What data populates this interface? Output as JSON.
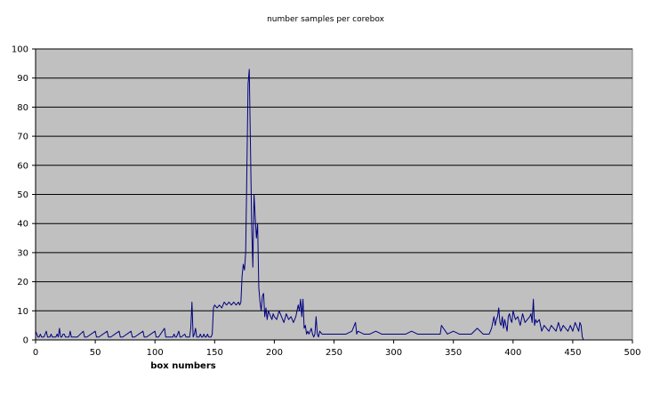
{
  "chart_data": {
    "type": "line",
    "title": "number samples per corebox",
    "xlabel": "box numbers",
    "ylabel": "",
    "xlim": [
      0,
      500
    ],
    "ylim": [
      0,
      100
    ],
    "x_ticks": [
      0,
      50,
      100,
      150,
      200,
      250,
      300,
      350,
      400,
      450,
      500
    ],
    "y_ticks": [
      0,
      10,
      20,
      30,
      40,
      50,
      60,
      70,
      80,
      90,
      100
    ],
    "grid": "horizontal",
    "legend": "none",
    "colors": {
      "plot_bg": "#c0c0c0",
      "line": "#000080",
      "grid": "#000000"
    },
    "series": [
      {
        "x": [
          0,
          1,
          2,
          3,
          4,
          5,
          6,
          7,
          8,
          9,
          10,
          11,
          12,
          13,
          14,
          15,
          16,
          17,
          18,
          19,
          20,
          21,
          22,
          23,
          24,
          25,
          26,
          27,
          28,
          29,
          30,
          31,
          32,
          33,
          34,
          35,
          40,
          41,
          42,
          43,
          50,
          51,
          52,
          53,
          60,
          61,
          62,
          63,
          70,
          71,
          72,
          73,
          80,
          81,
          82,
          83,
          90,
          91,
          92,
          93,
          100,
          101,
          102,
          103,
          108,
          109,
          110,
          111,
          115,
          116,
          117,
          118,
          120,
          121,
          122,
          125,
          126,
          127,
          128,
          129,
          130,
          131,
          132,
          133,
          134,
          135,
          136,
          137,
          138,
          139,
          140,
          141,
          142,
          143,
          144,
          145,
          146,
          147,
          148,
          149,
          150,
          152,
          154,
          156,
          158,
          160,
          162,
          164,
          166,
          168,
          170,
          171,
          172,
          173,
          174,
          175,
          176,
          177,
          178,
          179,
          180,
          181,
          182,
          183,
          184,
          185,
          186,
          187,
          188,
          189,
          190,
          191,
          192,
          193,
          194,
          195,
          196,
          197,
          198,
          199,
          200,
          202,
          204,
          206,
          208,
          210,
          212,
          214,
          216,
          218,
          220,
          221,
          222,
          223,
          224,
          225,
          226,
          227,
          228,
          229,
          230,
          231,
          232,
          233,
          234,
          235,
          236,
          237,
          238,
          240,
          245,
          250,
          255,
          260,
          265,
          268,
          269,
          270,
          275,
          280,
          285,
          290,
          295,
          300,
          305,
          310,
          315,
          320,
          325,
          330,
          335,
          338,
          339,
          340,
          345,
          350,
          355,
          360,
          365,
          370,
          375,
          378,
          380,
          382,
          384,
          385,
          386,
          387,
          388,
          389,
          390,
          391,
          392,
          393,
          394,
          395,
          396,
          397,
          398,
          399,
          400,
          402,
          404,
          406,
          408,
          410,
          412,
          414,
          415,
          416,
          417,
          418,
          419,
          420,
          422,
          424,
          426,
          428,
          430,
          432,
          434,
          436,
          438,
          440,
          442,
          444,
          446,
          448,
          450,
          452,
          454,
          455,
          456,
          457,
          458,
          459
        ],
        "values": [
          3,
          2,
          1,
          1,
          2,
          1,
          1,
          1,
          2,
          3,
          1,
          1,
          1,
          2,
          1,
          1,
          1,
          1,
          2,
          1,
          4,
          1,
          1,
          2,
          2,
          1,
          1,
          1,
          1,
          3,
          1,
          1,
          1,
          1,
          1,
          1,
          3,
          1,
          1,
          1,
          3,
          1,
          1,
          1,
          3,
          1,
          1,
          1,
          3,
          1,
          1,
          1,
          3,
          1,
          1,
          1,
          3,
          1,
          1,
          1,
          3,
          1,
          1,
          1,
          4,
          1,
          1,
          1,
          1,
          2,
          1,
          1,
          3,
          1,
          1,
          2,
          1,
          1,
          1,
          1,
          4,
          13,
          1,
          2,
          4,
          1,
          1,
          1,
          2,
          1,
          1,
          2,
          1,
          1,
          2,
          1,
          1,
          1,
          2,
          11,
          12,
          11,
          12,
          11,
          13,
          12,
          13,
          12,
          13,
          12,
          13,
          12,
          13,
          22,
          26,
          24,
          30,
          58,
          88,
          93,
          67,
          40,
          25,
          50,
          42,
          35,
          40,
          18,
          13,
          10,
          15,
          16,
          8,
          11,
          7,
          10,
          9,
          8,
          7,
          9,
          8,
          7,
          10,
          8,
          6,
          9,
          7,
          8,
          6,
          8,
          12,
          10,
          14,
          8,
          14,
          4,
          5,
          2,
          3,
          2,
          3,
          4,
          2,
          1,
          2,
          8,
          2,
          1,
          3,
          2,
          2,
          2,
          2,
          2,
          3,
          6,
          2,
          3,
          2,
          2,
          3,
          2,
          2,
          2,
          2,
          2,
          3,
          2,
          2,
          2,
          2,
          2,
          2,
          5,
          2,
          3,
          2,
          2,
          2,
          4,
          2,
          2,
          2,
          4,
          8,
          5,
          7,
          8,
          11,
          6,
          5,
          8,
          4,
          7,
          5,
          3,
          8,
          9,
          7,
          6,
          10,
          7,
          8,
          5,
          9,
          6,
          7,
          8,
          9,
          6,
          14,
          5,
          7,
          6,
          7,
          3,
          5,
          4,
          3,
          5,
          4,
          3,
          6,
          3,
          5,
          4,
          3,
          5,
          3,
          6,
          4,
          3,
          6,
          5,
          1,
          0
        ]
      }
    ]
  }
}
